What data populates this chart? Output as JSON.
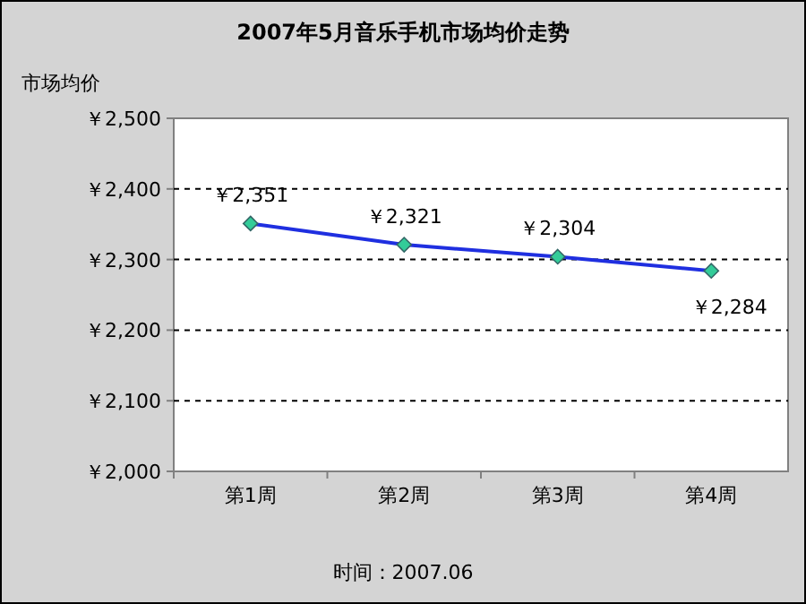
{
  "chart_data": {
    "type": "line",
    "title": "2007年5月音乐手机市场均价走势",
    "ylabel": "市场均价",
    "categories": [
      "第1周",
      "第2周",
      "第3周",
      "第4周"
    ],
    "series": [
      {
        "color": "#1f2fe0",
        "colors": [
          "#33cc99",
          "#33cc99",
          "#33cc99",
          "#33cc99"
        ],
        "values": [
          2351,
          2321,
          2304,
          2284
        ],
        "value_labels": [
          "￥2,351",
          "￥2,321",
          "￥2,304",
          "￥2,284"
        ]
      }
    ],
    "ylim": [
      2000,
      2500
    ],
    "yticks": [
      {
        "value": 2000,
        "label": "￥2,000"
      },
      {
        "value": 2100,
        "label": "￥2,100"
      },
      {
        "value": 2200,
        "label": "￥2,200"
      },
      {
        "value": 2300,
        "label": "￥2,300"
      },
      {
        "value": 2400,
        "label": "￥2,400"
      },
      {
        "value": 2500,
        "label": "￥2,500"
      }
    ],
    "grid": "y",
    "marker": "diamond",
    "line_style": "solid",
    "annotations": [
      "时间：2007.06"
    ]
  }
}
